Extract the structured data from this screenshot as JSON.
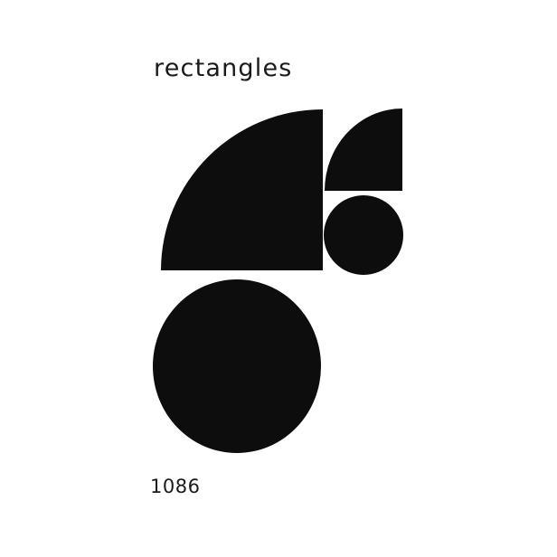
{
  "title": "rectangles",
  "number": "1086",
  "colors": {
    "ink": "#0d0d0d",
    "paper": "#ffffff"
  }
}
